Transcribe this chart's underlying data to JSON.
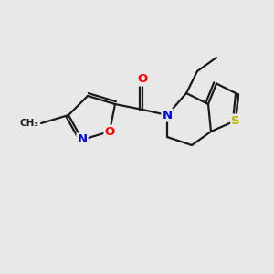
{
  "background_color": "#e8e8e8",
  "bond_color": "#1a1a1a",
  "atom_colors": {
    "O": "#ff0000",
    "N": "#0000ee",
    "S": "#b8b800",
    "C": "#1a1a1a"
  },
  "bond_width": 1.6,
  "dbl_sep": 0.1,
  "font_size_atoms": 9.5
}
